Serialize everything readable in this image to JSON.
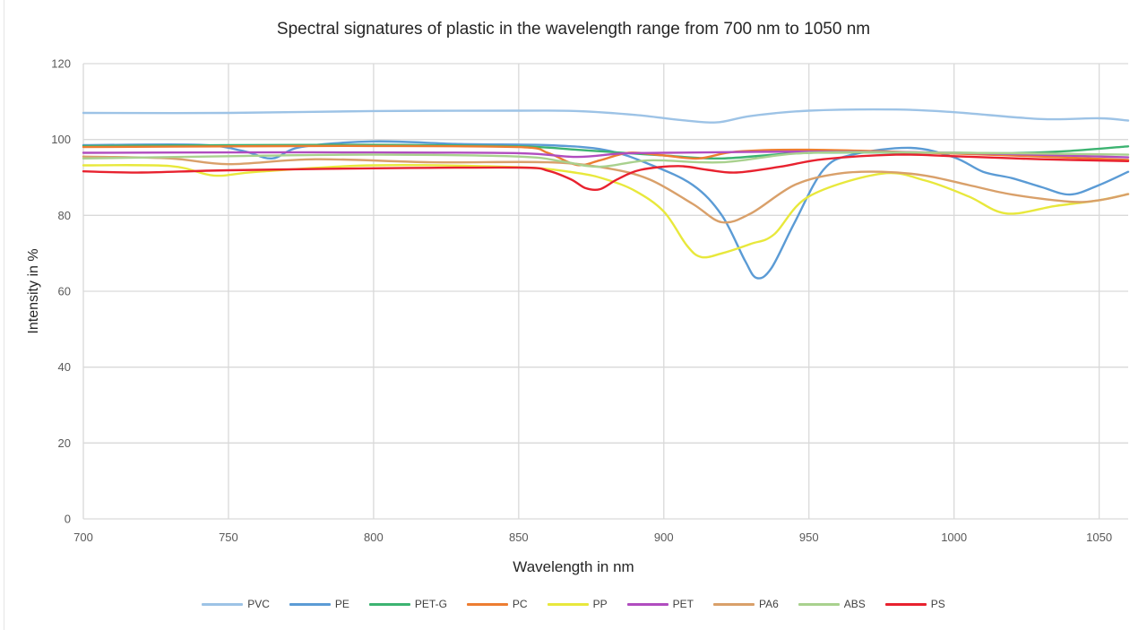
{
  "chart_data": {
    "type": "line",
    "title": "Spectral signatures of plastic in the wavelength range from 700 nm to 1050 nm",
    "xlabel": "Wavelength in nm",
    "ylabel": "Intensity in %",
    "xlim": [
      700,
      1060
    ],
    "ylim": [
      0,
      120
    ],
    "xticks": [
      700,
      750,
      800,
      850,
      900,
      950,
      1000,
      1050
    ],
    "yticks": [
      0,
      20,
      40,
      60,
      80,
      100,
      120
    ],
    "grid": true,
    "legend_position": "bottom",
    "series": [
      {
        "name": "PVC",
        "color": "#9DC3E6",
        "x": [
          700,
          750,
          800,
          850,
          870,
          890,
          905,
          918,
          930,
          950,
          980,
          1000,
          1030,
          1050,
          1060
        ],
        "y": [
          107,
          107,
          107.5,
          107.6,
          107.5,
          106.5,
          105.2,
          104.5,
          106.2,
          107.6,
          107.9,
          107.2,
          105.4,
          105.6,
          105
        ]
      },
      {
        "name": "PE",
        "color": "#5B9BD5",
        "x": [
          700,
          740,
          755,
          765,
          775,
          800,
          830,
          860,
          880,
          895,
          910,
          920,
          928,
          932,
          937,
          945,
          955,
          965,
          985,
          1000,
          1010,
          1020,
          1030,
          1040,
          1050,
          1060
        ],
        "y": [
          98.5,
          98.6,
          97,
          95,
          98,
          99.5,
          98.8,
          98.5,
          97.2,
          93.5,
          88,
          80,
          68,
          63.5,
          66,
          78,
          92,
          96,
          97.8,
          95.3,
          91.5,
          89.8,
          87.5,
          85.5,
          88,
          91.5
        ]
      },
      {
        "name": "PET-G",
        "color": "#3CB371",
        "x": [
          700,
          750,
          800,
          850,
          870,
          880,
          900,
          920,
          950,
          1000,
          1020,
          1040,
          1060
        ],
        "y": [
          98.3,
          98.5,
          98.6,
          98.2,
          97.3,
          96.8,
          95.8,
          95,
          96.5,
          96.5,
          96.4,
          97,
          98.2
        ]
      },
      {
        "name": "PC",
        "color": "#ED7D31",
        "x": [
          700,
          750,
          800,
          850,
          860,
          870,
          878,
          888,
          900,
          912,
          925,
          950,
          1000,
          1030,
          1060
        ],
        "y": [
          98,
          98.2,
          98.3,
          98,
          96.5,
          93.3,
          94.5,
          96.5,
          95.8,
          95,
          96.8,
          97.3,
          96.3,
          95.5,
          94.6
        ]
      },
      {
        "name": "PP",
        "color": "#E8E83C",
        "x": [
          700,
          730,
          745,
          760,
          800,
          850,
          870,
          880,
          890,
          900,
          908,
          913,
          920,
          930,
          938,
          950,
          975,
          990,
          1005,
          1018,
          1035,
          1050,
          1060
        ],
        "y": [
          93.2,
          93,
          90.5,
          91.5,
          93.2,
          92.7,
          91.2,
          89.5,
          86.5,
          81,
          72,
          69,
          70,
          72.5,
          75,
          85,
          91,
          89.2,
          85,
          80.5,
          82.5,
          84,
          85.6
        ]
      },
      {
        "name": "PET",
        "color": "#B04DBF",
        "x": [
          700,
          750,
          800,
          850,
          870,
          885,
          900,
          950,
          1000,
          1060
        ],
        "y": [
          96.5,
          96.6,
          96.6,
          96.4,
          95.4,
          96.3,
          96.5,
          96.8,
          96.5,
          95.3
        ]
      },
      {
        "name": "PA6",
        "color": "#D9A06A",
        "x": [
          700,
          730,
          750,
          780,
          820,
          860,
          880,
          895,
          910,
          920,
          930,
          945,
          960,
          975,
          990,
          1005,
          1020,
          1040,
          1050,
          1060
        ],
        "y": [
          95.5,
          95,
          93.5,
          94.8,
          94,
          94,
          92.5,
          89.5,
          83,
          78.2,
          80.5,
          88,
          91,
          91.5,
          90.5,
          88,
          85.5,
          83.6,
          84,
          85.6
        ]
      },
      {
        "name": "ABS",
        "color": "#A9D18E",
        "x": [
          700,
          750,
          800,
          850,
          865,
          878,
          895,
          920,
          950,
          1000,
          1060
        ],
        "y": [
          95,
          95.6,
          96,
          95.5,
          94.2,
          92.8,
          94.5,
          94,
          96.5,
          96.5,
          96
        ]
      },
      {
        "name": "PS",
        "color": "#E8222F",
        "x": [
          700,
          720,
          750,
          800,
          850,
          860,
          868,
          873,
          878,
          884,
          892,
          905,
          915,
          925,
          940,
          955,
          980,
          1000,
          1030,
          1060
        ],
        "y": [
          91.6,
          91.3,
          91.9,
          92.4,
          92.6,
          91.8,
          89.5,
          87.2,
          86.9,
          89.5,
          92,
          93,
          92,
          91.3,
          92.8,
          94.8,
          96,
          95.6,
          94.8,
          94.3
        ]
      }
    ]
  }
}
